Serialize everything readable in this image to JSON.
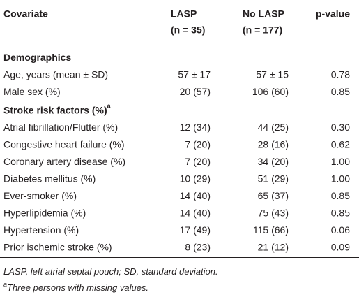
{
  "table": {
    "columns": [
      {
        "label": "Covariate"
      },
      {
        "label": "LASP",
        "subtitle": "(n = 35)"
      },
      {
        "label": "No LASP",
        "subtitle": "(n = 177)"
      },
      {
        "label": "p-value"
      }
    ],
    "sections": [
      {
        "title": "Demographics",
        "rows": [
          [
            "Age, years (mean ± SD)",
            "57 ± 17",
            "57 ± 15",
            "0.78"
          ],
          [
            "Male sex (%)",
            "20 (57)",
            "106 (60)",
            "0.85"
          ]
        ]
      },
      {
        "title": "Stroke risk factors (%)",
        "title_mark": "a",
        "rows": [
          [
            "Atrial fibrillation/Flutter (%)",
            "12 (34)",
            "44 (25)",
            "0.30"
          ],
          [
            "Congestive heart failure (%)",
            "7 (20)",
            "28 (16)",
            "0.62"
          ],
          [
            "Coronary artery disease (%)",
            "7 (20)",
            "34 (20)",
            "1.00"
          ],
          [
            "Diabetes mellitus (%)",
            "10 (29)",
            "51 (29)",
            "1.00"
          ],
          [
            "Ever-smoker (%)",
            "14 (40)",
            "65 (37)",
            "0.85"
          ],
          [
            "Hyperlipidemia (%)",
            "14 (40)",
            "75 (43)",
            "0.85"
          ],
          [
            "Hypertension (%)",
            "17 (49)",
            "115 (66)",
            "0.06"
          ],
          [
            "Prior ischemic stroke (%)",
            "8 (23)",
            "21 (12)",
            "0.09"
          ]
        ]
      }
    ]
  },
  "footnotes": [
    {
      "text": "LASP, left atrial septal pouch; SD, standard deviation."
    },
    {
      "mark": "a",
      "text": "Three persons with missing values."
    }
  ]
}
